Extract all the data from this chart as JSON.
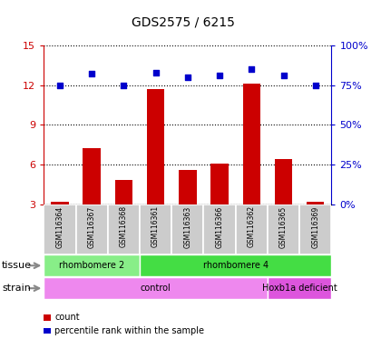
{
  "title": "GDS2575 / 6215",
  "samples": [
    "GSM116364",
    "GSM116367",
    "GSM116368",
    "GSM116361",
    "GSM116363",
    "GSM116366",
    "GSM116362",
    "GSM116365",
    "GSM116369"
  ],
  "counts": [
    3.2,
    7.2,
    4.8,
    11.7,
    5.6,
    6.1,
    12.1,
    6.4,
    3.2
  ],
  "percentiles": [
    75.0,
    82.0,
    75.0,
    83.0,
    80.0,
    81.0,
    85.0,
    81.0,
    75.0
  ],
  "ylim_left": [
    3,
    15
  ],
  "ylim_right": [
    0,
    100
  ],
  "yticks_left": [
    3,
    6,
    9,
    12,
    15
  ],
  "yticks_right": [
    0,
    25,
    50,
    75,
    100
  ],
  "bar_color": "#cc0000",
  "dot_color": "#0000cc",
  "tissue_groups": [
    {
      "label": "rhombomere 2",
      "start": 0,
      "end": 3,
      "color": "#88ee88"
    },
    {
      "label": "rhombomere 4",
      "start": 3,
      "end": 9,
      "color": "#44dd44"
    }
  ],
  "strain_groups": [
    {
      "label": "control",
      "start": 0,
      "end": 7,
      "color": "#ee88ee"
    },
    {
      "label": "Hoxb1a deficient",
      "start": 7,
      "end": 9,
      "color": "#dd55dd"
    }
  ],
  "legend_items": [
    {
      "label": "count",
      "color": "#cc0000"
    },
    {
      "label": "percentile rank within the sample",
      "color": "#0000cc"
    }
  ],
  "tissue_label": "tissue",
  "strain_label": "strain",
  "background_color": "#ffffff",
  "tick_color_left": "#cc0000",
  "tick_color_right": "#0000cc",
  "bar_width": 0.55,
  "grid_color": "#000000"
}
